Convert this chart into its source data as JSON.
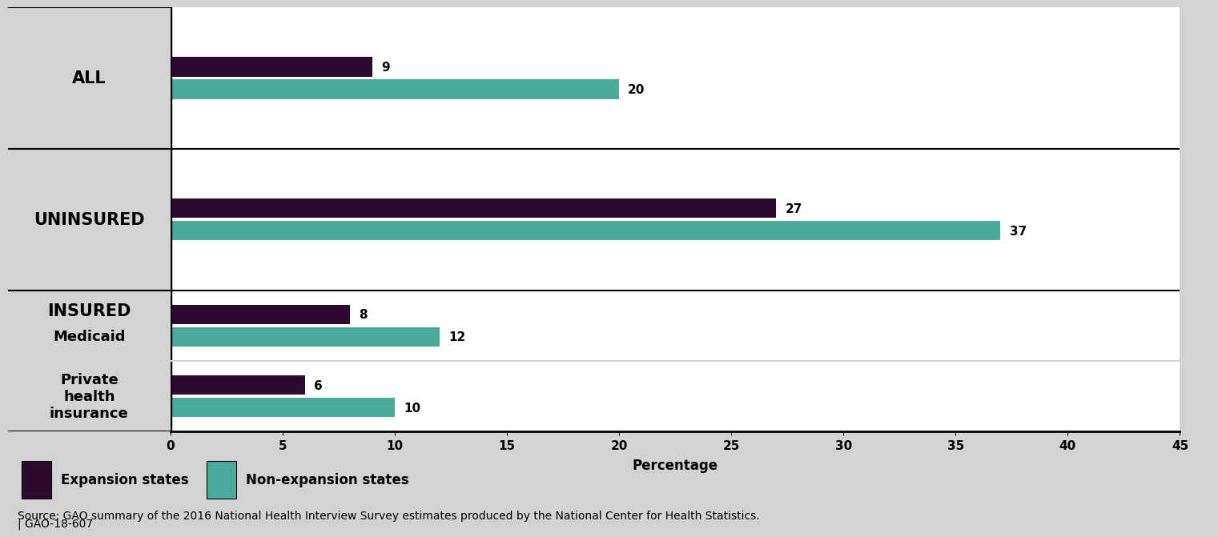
{
  "expansion_values": [
    9,
    27,
    8,
    6
  ],
  "nonexpansion_values": [
    20,
    37,
    12,
    10
  ],
  "expansion_color": "#2d0a2e",
  "nonexpansion_color": "#4aab9a",
  "xlim": [
    0,
    45
  ],
  "xticks": [
    0,
    5,
    10,
    15,
    20,
    25,
    30,
    35,
    40,
    45
  ],
  "xlabel": "Percentage",
  "legend_expansion": "Expansion states",
  "legend_nonexpansion": "Non-expansion states",
  "source_line1": "Source: GAO summary of the 2016 National Health Interview Survey estimates produced by the National Center for Health Statistics.",
  "source_line2": "| GAO-18-607",
  "background_color": "#d3d3d3",
  "plot_bg_color": "#ffffff",
  "axis_line_color": "#000000",
  "font_color": "#000000",
  "value_label_fontsize": 11,
  "tick_fontsize": 11,
  "xlabel_fontsize": 12,
  "legend_fontsize": 12,
  "source_fontsize": 10,
  "label_fontsize_large": 15,
  "label_fontsize_small": 13
}
